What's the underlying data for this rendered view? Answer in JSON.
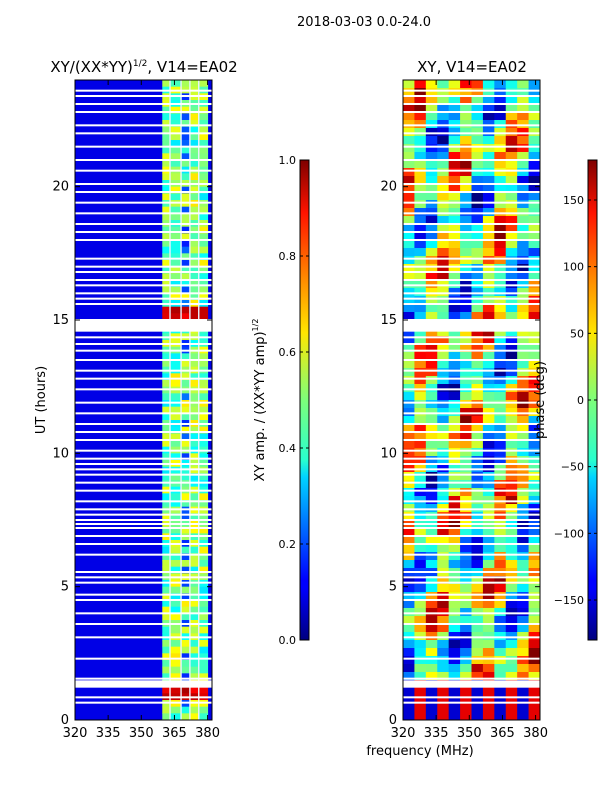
{
  "figure": {
    "suptitle": "2018-03-03 0.0-24.0",
    "shared_xlabel": "frequency (MHz)"
  },
  "chart_data": [
    {
      "type": "heatmap",
      "title": "XY/(XX*YY)",
      "title_exponent": "1/2",
      "title_suffix": ", V14=EA02",
      "xlabel": "frequency (MHz)",
      "ylabel": "UT (hours)",
      "xlim": [
        320,
        382
      ],
      "ylim": [
        0,
        24
      ],
      "xticks": [
        320,
        335,
        350,
        365,
        380
      ],
      "yticks": [
        0,
        5,
        10,
        15,
        20
      ],
      "colorbar": {
        "label": "XY amp. / (XX*YY amp)",
        "label_exponent": "1/2",
        "range": [
          0.0,
          1.0
        ],
        "ticks": [
          0.0,
          0.2,
          0.4,
          0.6,
          0.8,
          1.0
        ],
        "tick_labels": [
          "0.0",
          "0.2",
          "0.4",
          "0.6",
          "0.8",
          "1.0"
        ],
        "colormap": "jet"
      },
      "bands_mhz": [
        [
          359.5,
          363
        ],
        [
          363,
          368
        ],
        [
          368,
          372
        ],
        [
          372,
          376
        ],
        [
          376,
          380
        ]
      ],
      "flagged_hours": [
        0.65,
        0.85,
        1.25,
        1.45,
        1.55,
        2.3,
        3.1,
        3.6,
        4.0,
        4.5,
        4.7,
        5.15,
        5.35,
        5.55,
        6.2,
        6.6,
        6.9,
        7.2,
        7.35,
        7.5,
        7.7,
        7.9,
        8.2,
        8.6,
        8.9,
        9.2,
        9.4,
        9.6,
        9.8,
        10.1,
        10.5,
        10.8,
        11.1,
        11.5,
        11.9,
        12.4,
        12.8,
        13.1,
        13.5,
        13.85,
        14.1,
        14.35,
        14.6,
        14.8,
        15.0,
        15.6,
        15.8,
        16.0,
        16.3,
        16.5,
        16.8,
        17.0,
        17.3,
        18.0,
        18.3,
        18.6,
        19.0,
        19.4,
        19.8,
        20.1,
        20.6,
        21.0,
        21.5,
        22.0,
        22.3,
        22.8,
        23.1,
        23.4,
        23.6
      ]
    },
    {
      "type": "heatmap",
      "title": "XY, V14=EA02",
      "xlabel": "frequency (MHz)",
      "ylabel": "",
      "xlim": [
        320,
        382
      ],
      "ylim": [
        0,
        24
      ],
      "xticks": [
        320,
        335,
        350,
        365,
        380
      ],
      "yticks": [
        0,
        5,
        10,
        15,
        20
      ],
      "colorbar": {
        "label": "phase (deg)",
        "range": [
          -180,
          180
        ],
        "ticks": [
          -150,
          -100,
          -50,
          0,
          50,
          100,
          150
        ],
        "tick_labels": [
          "−150",
          "−100",
          "−50",
          "0",
          "50",
          "100",
          "150"
        ],
        "colormap": "jet"
      },
      "flagged_hours": [
        0.65,
        0.85,
        1.25,
        1.45,
        1.55,
        2.3,
        3.1,
        3.6,
        4.0,
        4.5,
        4.7,
        5.15,
        5.35,
        5.55,
        6.2,
        6.6,
        6.9,
        7.2,
        7.35,
        7.5,
        7.7,
        7.9,
        8.2,
        8.6,
        8.9,
        9.2,
        9.4,
        9.6,
        9.8,
        10.1,
        10.5,
        10.8,
        11.1,
        11.5,
        11.9,
        12.4,
        12.8,
        13.1,
        13.5,
        13.85,
        14.1,
        14.35,
        14.6,
        14.8,
        15.0,
        15.6,
        15.8,
        16.0,
        16.3,
        16.5,
        16.8,
        17.0,
        17.3,
        18.0,
        18.3,
        18.6,
        19.0,
        19.4,
        19.8,
        20.1,
        20.6,
        21.0,
        21.5,
        22.0,
        22.3,
        22.8,
        23.1,
        23.4,
        23.6
      ]
    }
  ]
}
